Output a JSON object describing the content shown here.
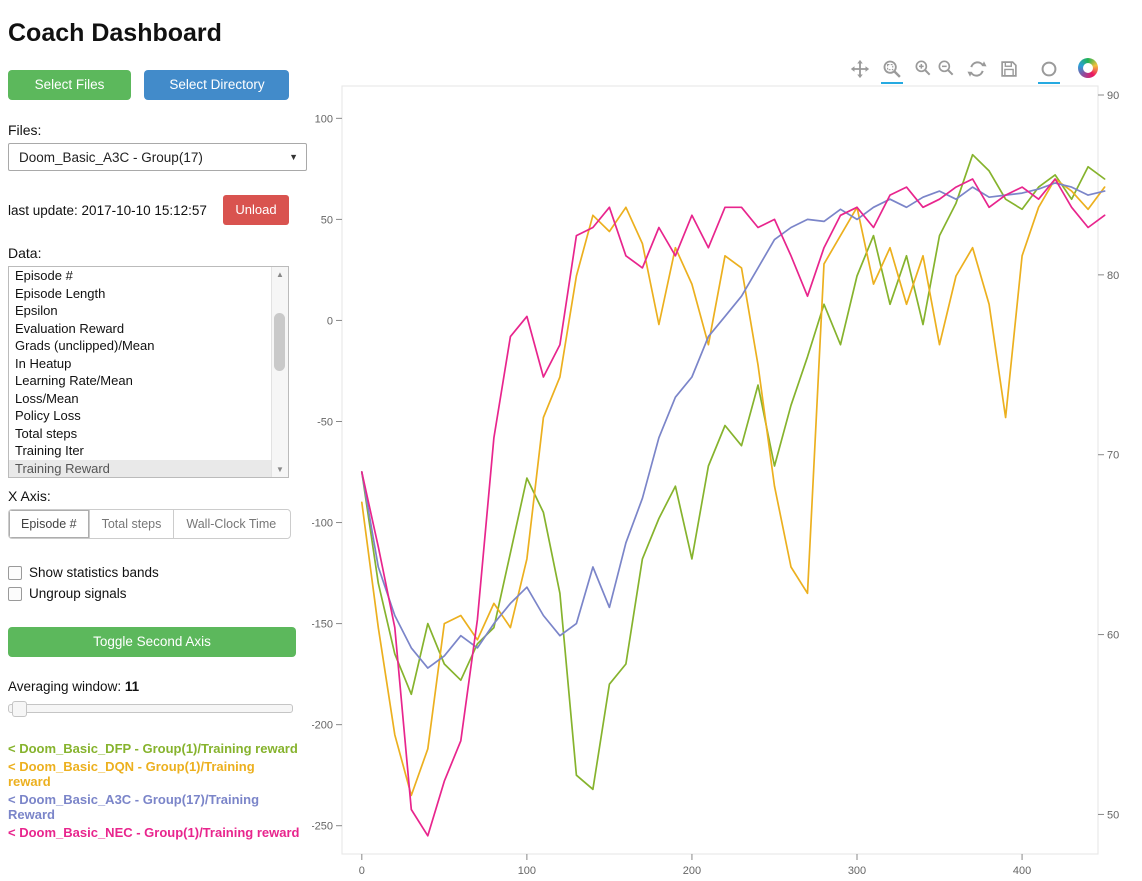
{
  "header": {
    "title": "Coach Dashboard"
  },
  "sidebar": {
    "buttons": {
      "select_files": "Select Files",
      "select_directory": "Select Directory"
    },
    "files": {
      "label": "Files:",
      "selected": "Doom_Basic_A3C - Group(17)"
    },
    "status": {
      "last_update": "last update: 2017-10-10 15:12:57",
      "unload_label": "Unload"
    },
    "data": {
      "label": "Data:",
      "items": [
        "Episode #",
        "Episode Length",
        "Epsilon",
        "Evaluation Reward",
        "Grads (unclipped)/Mean",
        "In Heatup",
        "Learning Rate/Mean",
        "Loss/Mean",
        "Policy Loss",
        "Total steps",
        "Training Iter",
        "Training Reward"
      ],
      "selected_index": 11
    },
    "xaxis": {
      "label": "X Axis:",
      "options": [
        "Episode #",
        "Total steps",
        "Wall-Clock Time"
      ],
      "active_index": 0
    },
    "checkboxes": [
      {
        "label": "Show statistics bands",
        "checked": false
      },
      {
        "label": "Ungroup signals",
        "checked": false
      }
    ],
    "toggle_axis_label": "Toggle Second Axis",
    "averaging": {
      "label": "Averaging window:",
      "value": "11"
    },
    "legend": [
      {
        "label": "< Doom_Basic_DFP - Group(1)/Training reward",
        "color": "#86b32d"
      },
      {
        "label": "< Doom_Basic_DQN - Group(1)/Training reward",
        "color": "#ecb01f"
      },
      {
        "label": "< Doom_Basic_A3C - Group(17)/Training Reward",
        "color": "#7b85c9"
      },
      {
        "label": "< Doom_Basic_NEC - Group(1)/Training reward",
        "color": "#e8258d"
      }
    ]
  },
  "toolbar": {
    "tools": [
      {
        "name": "pan",
        "active": false
      },
      {
        "name": "box-zoom",
        "active": true
      },
      {
        "name": "zoom-in",
        "active": false
      },
      {
        "name": "zoom-out",
        "active": false
      },
      {
        "name": "reset",
        "active": false
      },
      {
        "name": "save",
        "active": false
      },
      {
        "name": "hover",
        "active": true
      },
      {
        "name": "bokeh-logo",
        "active": false
      }
    ]
  },
  "chart_data": {
    "type": "line",
    "x": [
      0,
      10,
      20,
      30,
      40,
      50,
      60,
      70,
      80,
      90,
      100,
      110,
      120,
      130,
      140,
      150,
      160,
      170,
      180,
      190,
      200,
      210,
      220,
      230,
      240,
      250,
      260,
      270,
      280,
      290,
      300,
      310,
      320,
      330,
      340,
      350,
      360,
      370,
      380,
      390,
      400,
      410,
      420,
      430,
      440,
      450
    ],
    "series": [
      {
        "name": "Doom_Basic_DFP - Group(1)/Training reward",
        "short": "dfp",
        "color": "#86b32d",
        "values": [
          -75,
          -130,
          -165,
          -185,
          -150,
          -170,
          -178,
          -160,
          -152,
          -115,
          -78,
          -95,
          -135,
          -225,
          -232,
          -180,
          -170,
          -118,
          -98,
          -82,
          -118,
          -72,
          -52,
          -62,
          -32,
          -72,
          -42,
          -18,
          8,
          -12,
          22,
          42,
          8,
          32,
          -2,
          42,
          58,
          82,
          74,
          60,
          55,
          66,
          72,
          60,
          76,
          70
        ]
      },
      {
        "name": "Doom_Basic_DQN - Group(1)/Training reward",
        "short": "dqn",
        "color": "#ecb01f",
        "values": [
          -90,
          -152,
          -205,
          -235,
          -212,
          -150,
          -146,
          -158,
          -140,
          -152,
          -118,
          -48,
          -28,
          22,
          52,
          44,
          56,
          38,
          -2,
          36,
          18,
          -12,
          32,
          26,
          -22,
          -82,
          -122,
          -135,
          28,
          42,
          56,
          18,
          36,
          8,
          32,
          -12,
          22,
          36,
          8,
          -48,
          32,
          56,
          70,
          64,
          55,
          66
        ]
      },
      {
        "name": "Doom_Basic_A3C - Group(17)/Training Reward",
        "short": "a3c",
        "color": "#7b85c9",
        "values": [
          -75,
          -122,
          -146,
          -162,
          -172,
          -166,
          -156,
          -162,
          -150,
          -140,
          -132,
          -146,
          -156,
          -150,
          -122,
          -142,
          -110,
          -88,
          -58,
          -38,
          -28,
          -8,
          2,
          12,
          26,
          40,
          46,
          50,
          49,
          55,
          50,
          56,
          60,
          56,
          61,
          64,
          60,
          66,
          61,
          62,
          63,
          65,
          68,
          66,
          62,
          64
        ]
      },
      {
        "name": "Doom_Basic_NEC - Group(1)/Training reward",
        "short": "nec",
        "color": "#e8258d",
        "values": [
          -75,
          -112,
          -152,
          -242,
          -255,
          -228,
          -208,
          -148,
          -58,
          -8,
          2,
          -28,
          -12,
          42,
          46,
          56,
          32,
          26,
          46,
          32,
          52,
          36,
          56,
          56,
          46,
          50,
          32,
          12,
          36,
          52,
          56,
          46,
          62,
          66,
          56,
          60,
          66,
          70,
          56,
          62,
          66,
          60,
          70,
          56,
          46,
          52
        ]
      }
    ],
    "xlim": [
      -12,
      446
    ],
    "ylim_left": [
      -264,
      116
    ],
    "ylim_right": [
      47.8,
      90.5
    ],
    "x_ticks": [
      0,
      100,
      200,
      300,
      400
    ],
    "y_ticks_left": [
      100,
      50,
      0,
      -50,
      -100,
      -150,
      -200,
      -250
    ],
    "y_ticks_right": [
      90,
      80,
      70,
      60,
      50
    ],
    "grid": false,
    "legend_position": "sidebar"
  }
}
